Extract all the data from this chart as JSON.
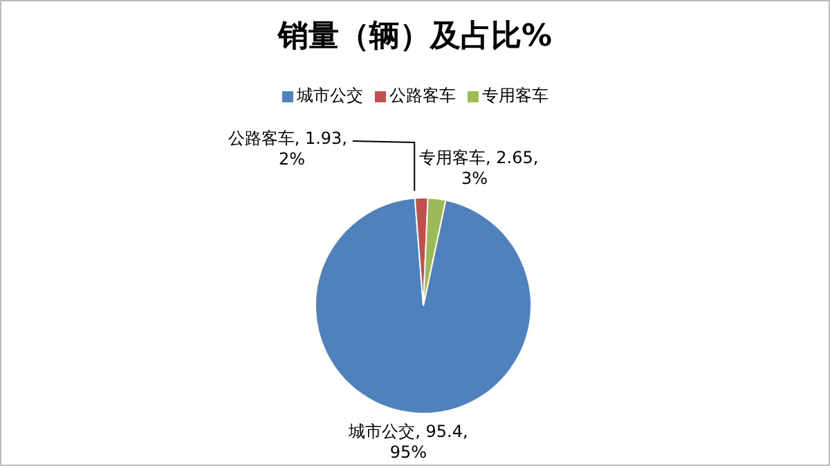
{
  "chart_data": {
    "type": "pie",
    "title": "销量（辆）及占比%",
    "categories": [
      "城市公交",
      "公路客车",
      "专用客车"
    ],
    "values": [
      95.4,
      1.93,
      2.65
    ],
    "colors": [
      "#4f81bd",
      "#c0504d",
      "#9bbb59"
    ],
    "value_labels": [
      "城市公交, 95.4, 95%",
      "公路客车, 1.93, 2%",
      "专用客车, 2.65, 3%"
    ],
    "legend": "top"
  }
}
